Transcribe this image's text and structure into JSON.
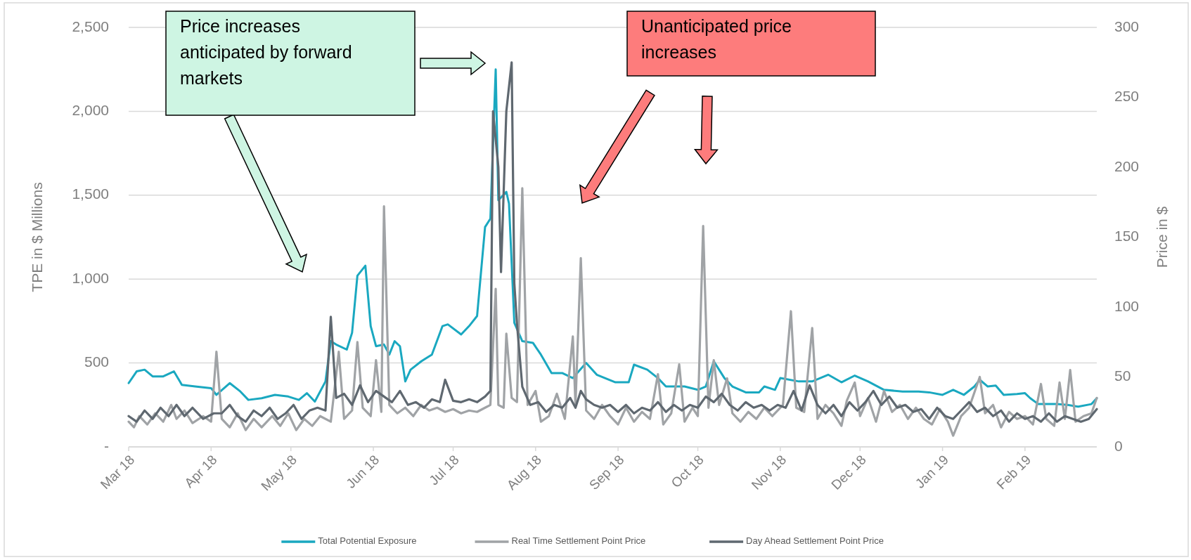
{
  "chart_data": {
    "type": "line",
    "xlim": [
      "2018-03-01",
      "2019-02-28"
    ],
    "xticks": [
      {
        "value": "2018-03-01",
        "label": "Mar 18"
      },
      {
        "value": "2018-04-01",
        "label": "Apr 18"
      },
      {
        "value": "2018-05-01",
        "label": "May 18"
      },
      {
        "value": "2018-06-01",
        "label": "Jun 18"
      },
      {
        "value": "2018-07-01",
        "label": "Jul 18"
      },
      {
        "value": "2018-08-01",
        "label": "Aug 18"
      },
      {
        "value": "2018-09-01",
        "label": "Sep 18"
      },
      {
        "value": "2018-10-01",
        "label": "Oct 18"
      },
      {
        "value": "2018-11-01",
        "label": "Nov 18"
      },
      {
        "value": "2018-12-01",
        "label": "Dec 18"
      },
      {
        "value": "2019-01-01",
        "label": "Jan 19"
      },
      {
        "value": "2019-02-01",
        "label": "Feb 19"
      }
    ],
    "ylim": [
      0,
      2500
    ],
    "yticks": [
      {
        "value": 0,
        "label": "-"
      },
      500,
      {
        "value": 1000,
        "label": "1,000"
      },
      {
        "value": 1500,
        "label": "1,500"
      },
      {
        "value": 2000,
        "label": "2,000"
      },
      {
        "value": 2500,
        "label": "2,500"
      }
    ],
    "y2lim": [
      0,
      300
    ],
    "y2ticks": [
      0,
      50,
      100,
      150,
      200,
      250,
      300
    ],
    "ylabel": "TPE in $ Millions",
    "y2label": "Price in $",
    "grid": "y",
    "legend": "bottom",
    "line_style": "solid",
    "marker": "none",
    "annotations": [
      "Price increases anticipated by forward markets",
      "Unanticipated price increases"
    ],
    "series": [
      {
        "name": "Total Potential Exposure",
        "color": "#1aa8c0",
        "x": [
          "2018-03-01",
          "2018-03-04",
          "2018-03-07",
          "2018-03-10",
          "2018-03-14",
          "2018-03-18",
          "2018-03-21",
          "2018-03-26",
          "2018-04-01",
          "2018-04-03",
          "2018-04-08",
          "2018-04-12",
          "2018-04-15",
          "2018-04-20",
          "2018-04-25",
          "2018-04-30",
          "2018-05-04",
          "2018-05-07",
          "2018-05-10",
          "2018-05-14",
          "2018-05-16",
          "2018-05-18",
          "2018-05-22",
          "2018-05-24",
          "2018-05-26",
          "2018-05-29",
          "2018-05-31",
          "2018-06-02",
          "2018-06-05",
          "2018-06-07",
          "2018-06-09",
          "2018-06-11",
          "2018-06-13",
          "2018-06-15",
          "2018-06-19",
          "2018-06-23",
          "2018-06-27",
          "2018-06-29",
          "2018-07-04",
          "2018-07-07",
          "2018-07-10",
          "2018-07-13",
          "2018-07-15",
          "2018-07-17",
          "2018-07-18",
          "2018-07-21",
          "2018-07-22",
          "2018-07-24",
          "2018-07-27",
          "2018-07-31",
          "2018-08-03",
          "2018-08-07",
          "2018-08-11",
          "2018-08-15",
          "2018-08-20",
          "2018-08-24",
          "2018-08-31",
          "2018-09-05",
          "2018-09-07",
          "2018-09-12",
          "2018-09-16",
          "2018-09-19",
          "2018-09-26",
          "2018-10-01",
          "2018-10-04",
          "2018-10-07",
          "2018-10-11",
          "2018-10-14",
          "2018-10-19",
          "2018-10-24",
          "2018-10-26",
          "2018-10-30",
          "2018-11-01",
          "2018-11-08",
          "2018-11-13",
          "2018-11-19",
          "2018-11-24",
          "2018-11-29",
          "2018-12-04",
          "2018-12-10",
          "2018-12-17",
          "2018-12-23",
          "2018-12-27",
          "2019-01-01",
          "2019-01-05",
          "2019-01-09",
          "2019-01-13",
          "2019-01-15",
          "2019-01-18",
          "2019-01-21",
          "2019-01-24",
          "2019-01-29",
          "2019-02-01",
          "2019-02-03",
          "2019-02-06",
          "2019-02-13",
          "2019-02-17",
          "2019-02-21",
          "2019-02-26",
          "2019-02-28"
        ],
        "values": [
          380,
          450,
          460,
          420,
          420,
          450,
          370,
          360,
          350,
          310,
          380,
          330,
          280,
          290,
          310,
          300,
          280,
          320,
          270,
          390,
          630,
          610,
          580,
          680,
          1020,
          1080,
          720,
          600,
          610,
          550,
          630,
          600,
          390,
          460,
          510,
          550,
          720,
          730,
          670,
          720,
          780,
          1310,
          1360,
          2250,
          1470,
          1520,
          1450,
          740,
          630,
          620,
          550,
          440,
          440,
          410,
          500,
          430,
          385,
          385,
          490,
          460,
          410,
          360,
          360,
          340,
          360,
          510,
          410,
          360,
          325,
          325,
          360,
          340,
          410,
          390,
          390,
          430,
          385,
          425,
          390,
          340,
          330,
          330,
          325,
          310,
          340,
          310,
          360,
          400,
          360,
          365,
          310,
          315,
          320,
          290,
          255,
          255,
          250,
          240,
          255,
          290
        ]
      },
      {
        "name": "Real Time Settlement Point Price",
        "color": "#a0a3a6",
        "axis": "y2",
        "x": [
          "2018-03-01",
          "2018-03-03",
          "2018-03-05",
          "2018-03-08",
          "2018-03-11",
          "2018-03-14",
          "2018-03-17",
          "2018-03-19",
          "2018-03-22",
          "2018-03-25",
          "2018-03-29",
          "2018-04-01",
          "2018-04-03",
          "2018-04-05",
          "2018-04-08",
          "2018-04-11",
          "2018-04-14",
          "2018-04-17",
          "2018-04-20",
          "2018-04-24",
          "2018-04-27",
          "2018-04-30",
          "2018-05-03",
          "2018-05-06",
          "2018-05-09",
          "2018-05-12",
          "2018-05-16",
          "2018-05-19",
          "2018-05-21",
          "2018-05-24",
          "2018-05-26",
          "2018-05-28",
          "2018-05-31",
          "2018-06-02",
          "2018-06-04",
          "2018-06-05",
          "2018-06-07",
          "2018-06-10",
          "2018-06-13",
          "2018-06-16",
          "2018-06-19",
          "2018-06-22",
          "2018-06-25",
          "2018-06-28",
          "2018-07-01",
          "2018-07-04",
          "2018-07-07",
          "2018-07-10",
          "2018-07-13",
          "2018-07-15",
          "2018-07-17",
          "2018-07-18",
          "2018-07-20",
          "2018-07-21",
          "2018-07-23",
          "2018-07-25",
          "2018-07-27",
          "2018-07-29",
          "2018-08-01",
          "2018-08-03",
          "2018-08-06",
          "2018-08-09",
          "2018-08-12",
          "2018-08-15",
          "2018-08-16",
          "2018-08-18",
          "2018-08-20",
          "2018-08-23",
          "2018-08-26",
          "2018-08-29",
          "2018-09-01",
          "2018-09-04",
          "2018-09-07",
          "2018-09-10",
          "2018-09-13",
          "2018-09-16",
          "2018-09-18",
          "2018-09-21",
          "2018-09-24",
          "2018-09-26",
          "2018-09-29",
          "2018-10-01",
          "2018-10-03",
          "2018-10-05",
          "2018-10-07",
          "2018-10-09",
          "2018-10-12",
          "2018-10-14",
          "2018-10-17",
          "2018-10-20",
          "2018-10-23",
          "2018-10-26",
          "2018-10-29",
          "2018-11-02",
          "2018-11-05",
          "2018-11-07",
          "2018-11-10",
          "2018-11-13",
          "2018-11-15",
          "2018-11-18",
          "2018-11-21",
          "2018-11-24",
          "2018-11-26",
          "2018-11-29",
          "2018-12-01",
          "2018-12-04",
          "2018-12-07",
          "2018-12-10",
          "2018-12-13",
          "2018-12-16",
          "2018-12-19",
          "2018-12-22",
          "2018-12-25",
          "2018-12-28",
          "2018-12-31",
          "2019-01-03",
          "2019-01-05",
          "2019-01-08",
          "2019-01-11",
          "2019-01-15",
          "2019-01-17",
          "2019-01-20",
          "2019-01-23",
          "2019-01-26",
          "2019-01-29",
          "2019-02-01",
          "2019-02-04",
          "2019-02-07",
          "2019-02-09",
          "2019-02-12",
          "2019-02-14",
          "2019-02-16",
          "2019-02-18",
          "2019-02-20",
          "2019-02-23",
          "2019-02-26",
          "2019-02-28"
        ],
        "values": [
          18,
          14,
          22,
          16,
          24,
          18,
          30,
          20,
          26,
          17,
          22,
          18,
          68,
          20,
          14,
          24,
          12,
          20,
          14,
          22,
          15,
          24,
          12,
          20,
          15,
          22,
          18,
          68,
          20,
          26,
          75,
          28,
          22,
          62,
          25,
          172,
          30,
          24,
          28,
          22,
          30,
          26,
          28,
          25,
          27,
          24,
          26,
          25,
          28,
          30,
          113,
          30,
          28,
          81,
          35,
          32,
          185,
          30,
          40,
          18,
          22,
          38,
          20,
          79,
          30,
          135,
          26,
          20,
          30,
          22,
          16,
          28,
          18,
          25,
          20,
          52,
          16,
          24,
          59,
          18,
          28,
          22,
          158,
          28,
          62,
          30,
          49,
          24,
          18,
          25,
          20,
          28,
          22,
          30,
          97,
          28,
          25,
          85,
          20,
          30,
          24,
          15,
          33,
          46,
          22,
          35,
          18,
          40,
          25,
          30,
          20,
          28,
          20,
          16,
          27,
          18,
          8,
          22,
          28,
          50,
          24,
          30,
          14,
          25,
          20,
          22,
          16,
          45,
          20,
          15,
          46,
          20,
          55,
          18,
          22,
          24,
          35
        ]
      },
      {
        "name": "Day Ahead Settlement Point Price",
        "color": "#5f6870",
        "axis": "y2",
        "x": [
          "2018-03-01",
          "2018-03-04",
          "2018-03-07",
          "2018-03-10",
          "2018-03-13",
          "2018-03-16",
          "2018-03-19",
          "2018-03-22",
          "2018-03-25",
          "2018-03-29",
          "2018-04-02",
          "2018-04-05",
          "2018-04-08",
          "2018-04-11",
          "2018-04-14",
          "2018-04-17",
          "2018-04-20",
          "2018-04-23",
          "2018-04-26",
          "2018-04-29",
          "2018-05-02",
          "2018-05-05",
          "2018-05-08",
          "2018-05-11",
          "2018-05-14",
          "2018-05-16",
          "2018-05-18",
          "2018-05-21",
          "2018-05-24",
          "2018-05-27",
          "2018-05-30",
          "2018-06-02",
          "2018-06-05",
          "2018-06-08",
          "2018-06-11",
          "2018-06-14",
          "2018-06-17",
          "2018-06-20",
          "2018-06-23",
          "2018-06-26",
          "2018-06-28",
          "2018-07-01",
          "2018-07-04",
          "2018-07-07",
          "2018-07-10",
          "2018-07-13",
          "2018-07-15",
          "2018-07-16",
          "2018-07-18",
          "2018-07-19",
          "2018-07-21",
          "2018-07-23",
          "2018-07-24",
          "2018-07-25",
          "2018-07-27",
          "2018-07-30",
          "2018-08-02",
          "2018-08-05",
          "2018-08-08",
          "2018-08-11",
          "2018-08-14",
          "2018-08-16",
          "2018-08-18",
          "2018-08-20",
          "2018-08-23",
          "2018-08-26",
          "2018-08-29",
          "2018-09-01",
          "2018-09-04",
          "2018-09-07",
          "2018-09-10",
          "2018-09-13",
          "2018-09-16",
          "2018-09-19",
          "2018-09-22",
          "2018-09-25",
          "2018-09-28",
          "2018-10-01",
          "2018-10-04",
          "2018-10-07",
          "2018-10-10",
          "2018-10-13",
          "2018-10-16",
          "2018-10-19",
          "2018-10-22",
          "2018-10-25",
          "2018-10-28",
          "2018-10-31",
          "2018-11-03",
          "2018-11-06",
          "2018-11-09",
          "2018-11-12",
          "2018-11-15",
          "2018-11-18",
          "2018-11-21",
          "2018-11-24",
          "2018-11-27",
          "2018-11-30",
          "2018-12-03",
          "2018-12-06",
          "2018-12-09",
          "2018-12-12",
          "2018-12-15",
          "2018-12-18",
          "2018-12-21",
          "2018-12-24",
          "2018-12-27",
          "2018-12-30",
          "2019-01-02",
          "2019-01-05",
          "2019-01-08",
          "2019-01-11",
          "2019-01-14",
          "2019-01-17",
          "2019-01-20",
          "2019-01-23",
          "2019-01-26",
          "2019-01-29",
          "2019-02-01",
          "2019-02-04",
          "2019-02-07",
          "2019-02-10",
          "2019-02-13",
          "2019-02-16",
          "2019-02-19",
          "2019-02-22",
          "2019-02-25",
          "2019-02-28"
        ],
        "values": [
          22,
          18,
          26,
          20,
          28,
          22,
          30,
          22,
          28,
          20,
          24,
          24,
          30,
          22,
          18,
          26,
          22,
          28,
          20,
          24,
          30,
          20,
          26,
          28,
          26,
          93,
          35,
          38,
          30,
          44,
          32,
          40,
          36,
          32,
          40,
          30,
          32,
          28,
          34,
          32,
          48,
          33,
          32,
          34,
          32,
          36,
          40,
          240,
          200,
          125,
          240,
          275,
          117,
          88,
          43,
          30,
          32,
          25,
          30,
          28,
          35,
          28,
          40,
          34,
          30,
          28,
          30,
          25,
          30,
          24,
          28,
          26,
          32,
          25,
          30,
          26,
          30,
          28,
          36,
          32,
          38,
          30,
          26,
          32,
          28,
          30,
          26,
          30,
          28,
          40,
          26,
          44,
          30,
          24,
          30,
          22,
          32,
          26,
          32,
          40,
          30,
          36,
          28,
          30,
          25,
          27,
          20,
          28,
          22,
          20,
          26,
          32,
          25,
          28,
          22,
          26,
          18,
          24,
          20,
          22,
          18,
          24,
          18,
          22,
          20,
          18,
          20,
          27
        ]
      }
    ]
  }
}
